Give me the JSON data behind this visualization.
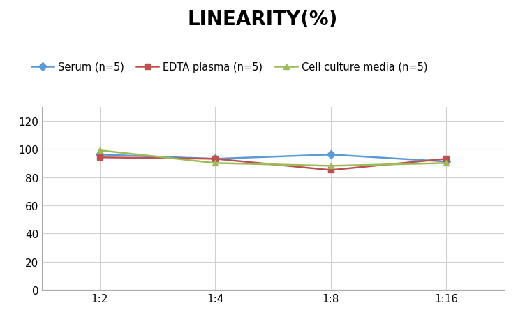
{
  "title": "LINEARITY(%)",
  "x_labels": [
    "1:2",
    "1:4",
    "1:8",
    "1:16"
  ],
  "series": [
    {
      "label": "Serum (n=5)",
      "values": [
        96,
        93,
        96,
        91
      ],
      "color": "#5B9BD5",
      "marker": "D",
      "marker_color": "#5B9BD5"
    },
    {
      "label": "EDTA plasma (n=5)",
      "values": [
        94,
        93,
        85,
        93
      ],
      "color": "#C0504D",
      "marker": "s",
      "marker_color": "#C0504D"
    },
    {
      "label": "Cell culture media (n=5)",
      "values": [
        99,
        90,
        88,
        90
      ],
      "color": "#9BBB59",
      "marker": "^",
      "marker_color": "#9BBB59"
    }
  ],
  "ylim": [
    0,
    130
  ],
  "yticks": [
    0,
    20,
    40,
    60,
    80,
    100,
    120
  ],
  "background_color": "#ffffff",
  "grid_color": "#d0d0d0",
  "title_fontsize": 20,
  "legend_fontsize": 10.5,
  "tick_fontsize": 11
}
